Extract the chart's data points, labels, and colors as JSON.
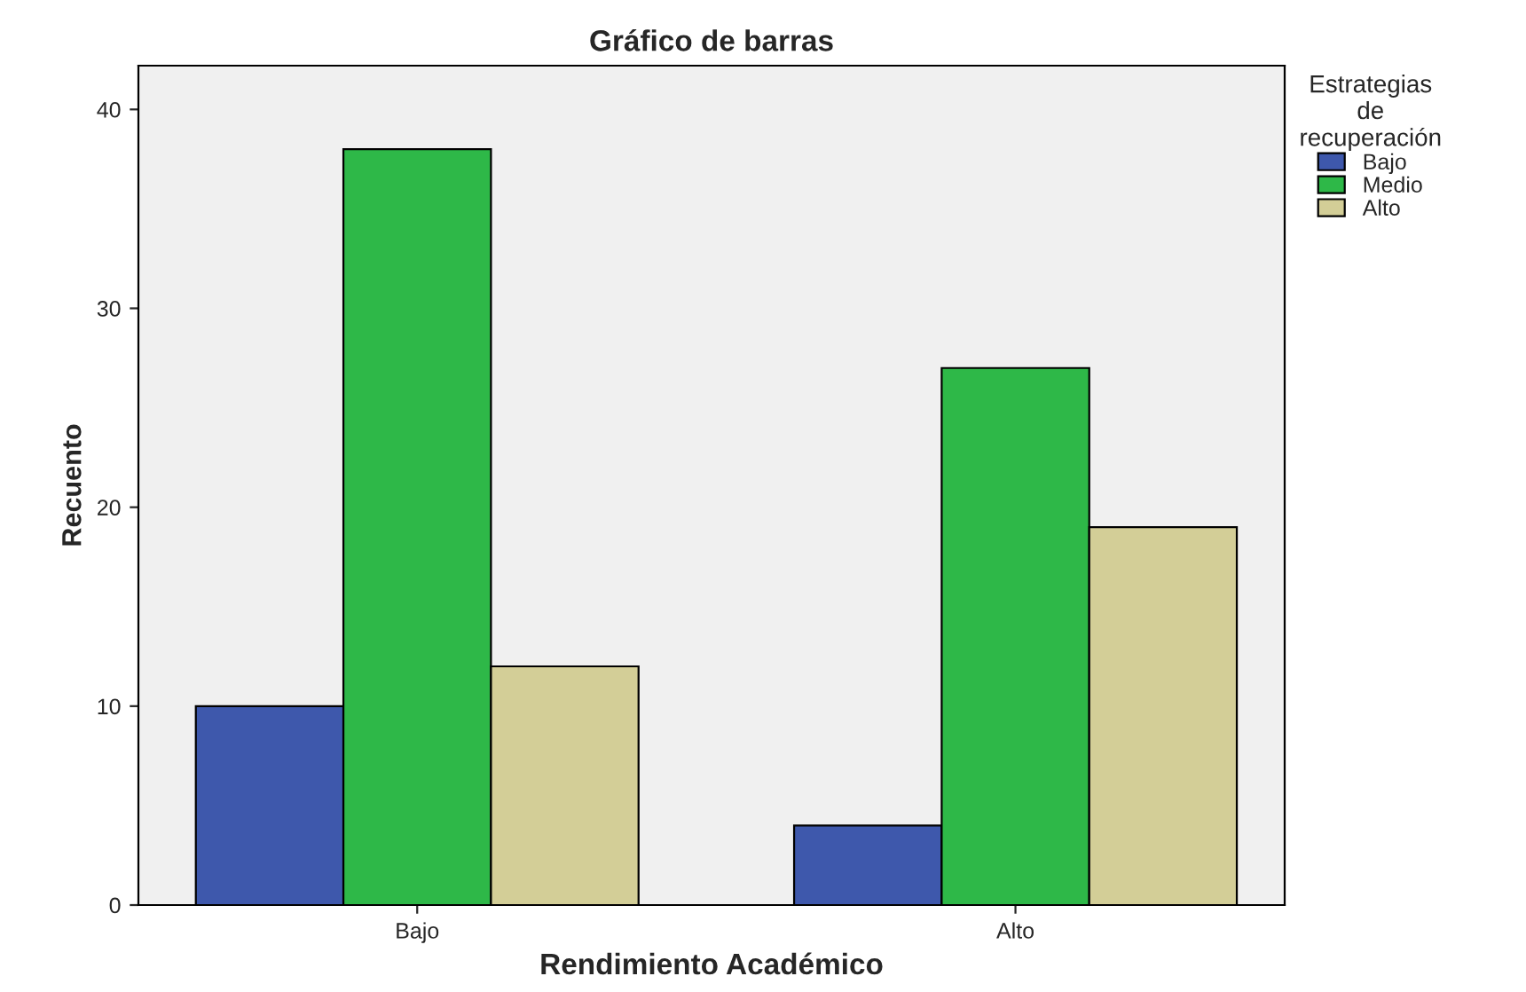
{
  "chart_data": {
    "type": "bar",
    "title": "Gráfico de barras",
    "xlabel": "Rendimiento Académico",
    "ylabel": "Recuento",
    "legend_title": "Estrategias de recuperación",
    "categories": [
      "Bajo",
      "Alto"
    ],
    "series": [
      {
        "name": "Bajo",
        "color": "#3e58ac",
        "values": [
          10,
          4
        ]
      },
      {
        "name": "Medio",
        "color": "#2eb848",
        "values": [
          38,
          27
        ]
      },
      {
        "name": "Alto",
        "color": "#d3ce97",
        "values": [
          12,
          19
        ]
      }
    ],
    "ylim": [
      0,
      42.2
    ],
    "yticks": [
      0,
      10,
      20,
      30,
      40
    ],
    "grid": false,
    "legend": "right"
  }
}
